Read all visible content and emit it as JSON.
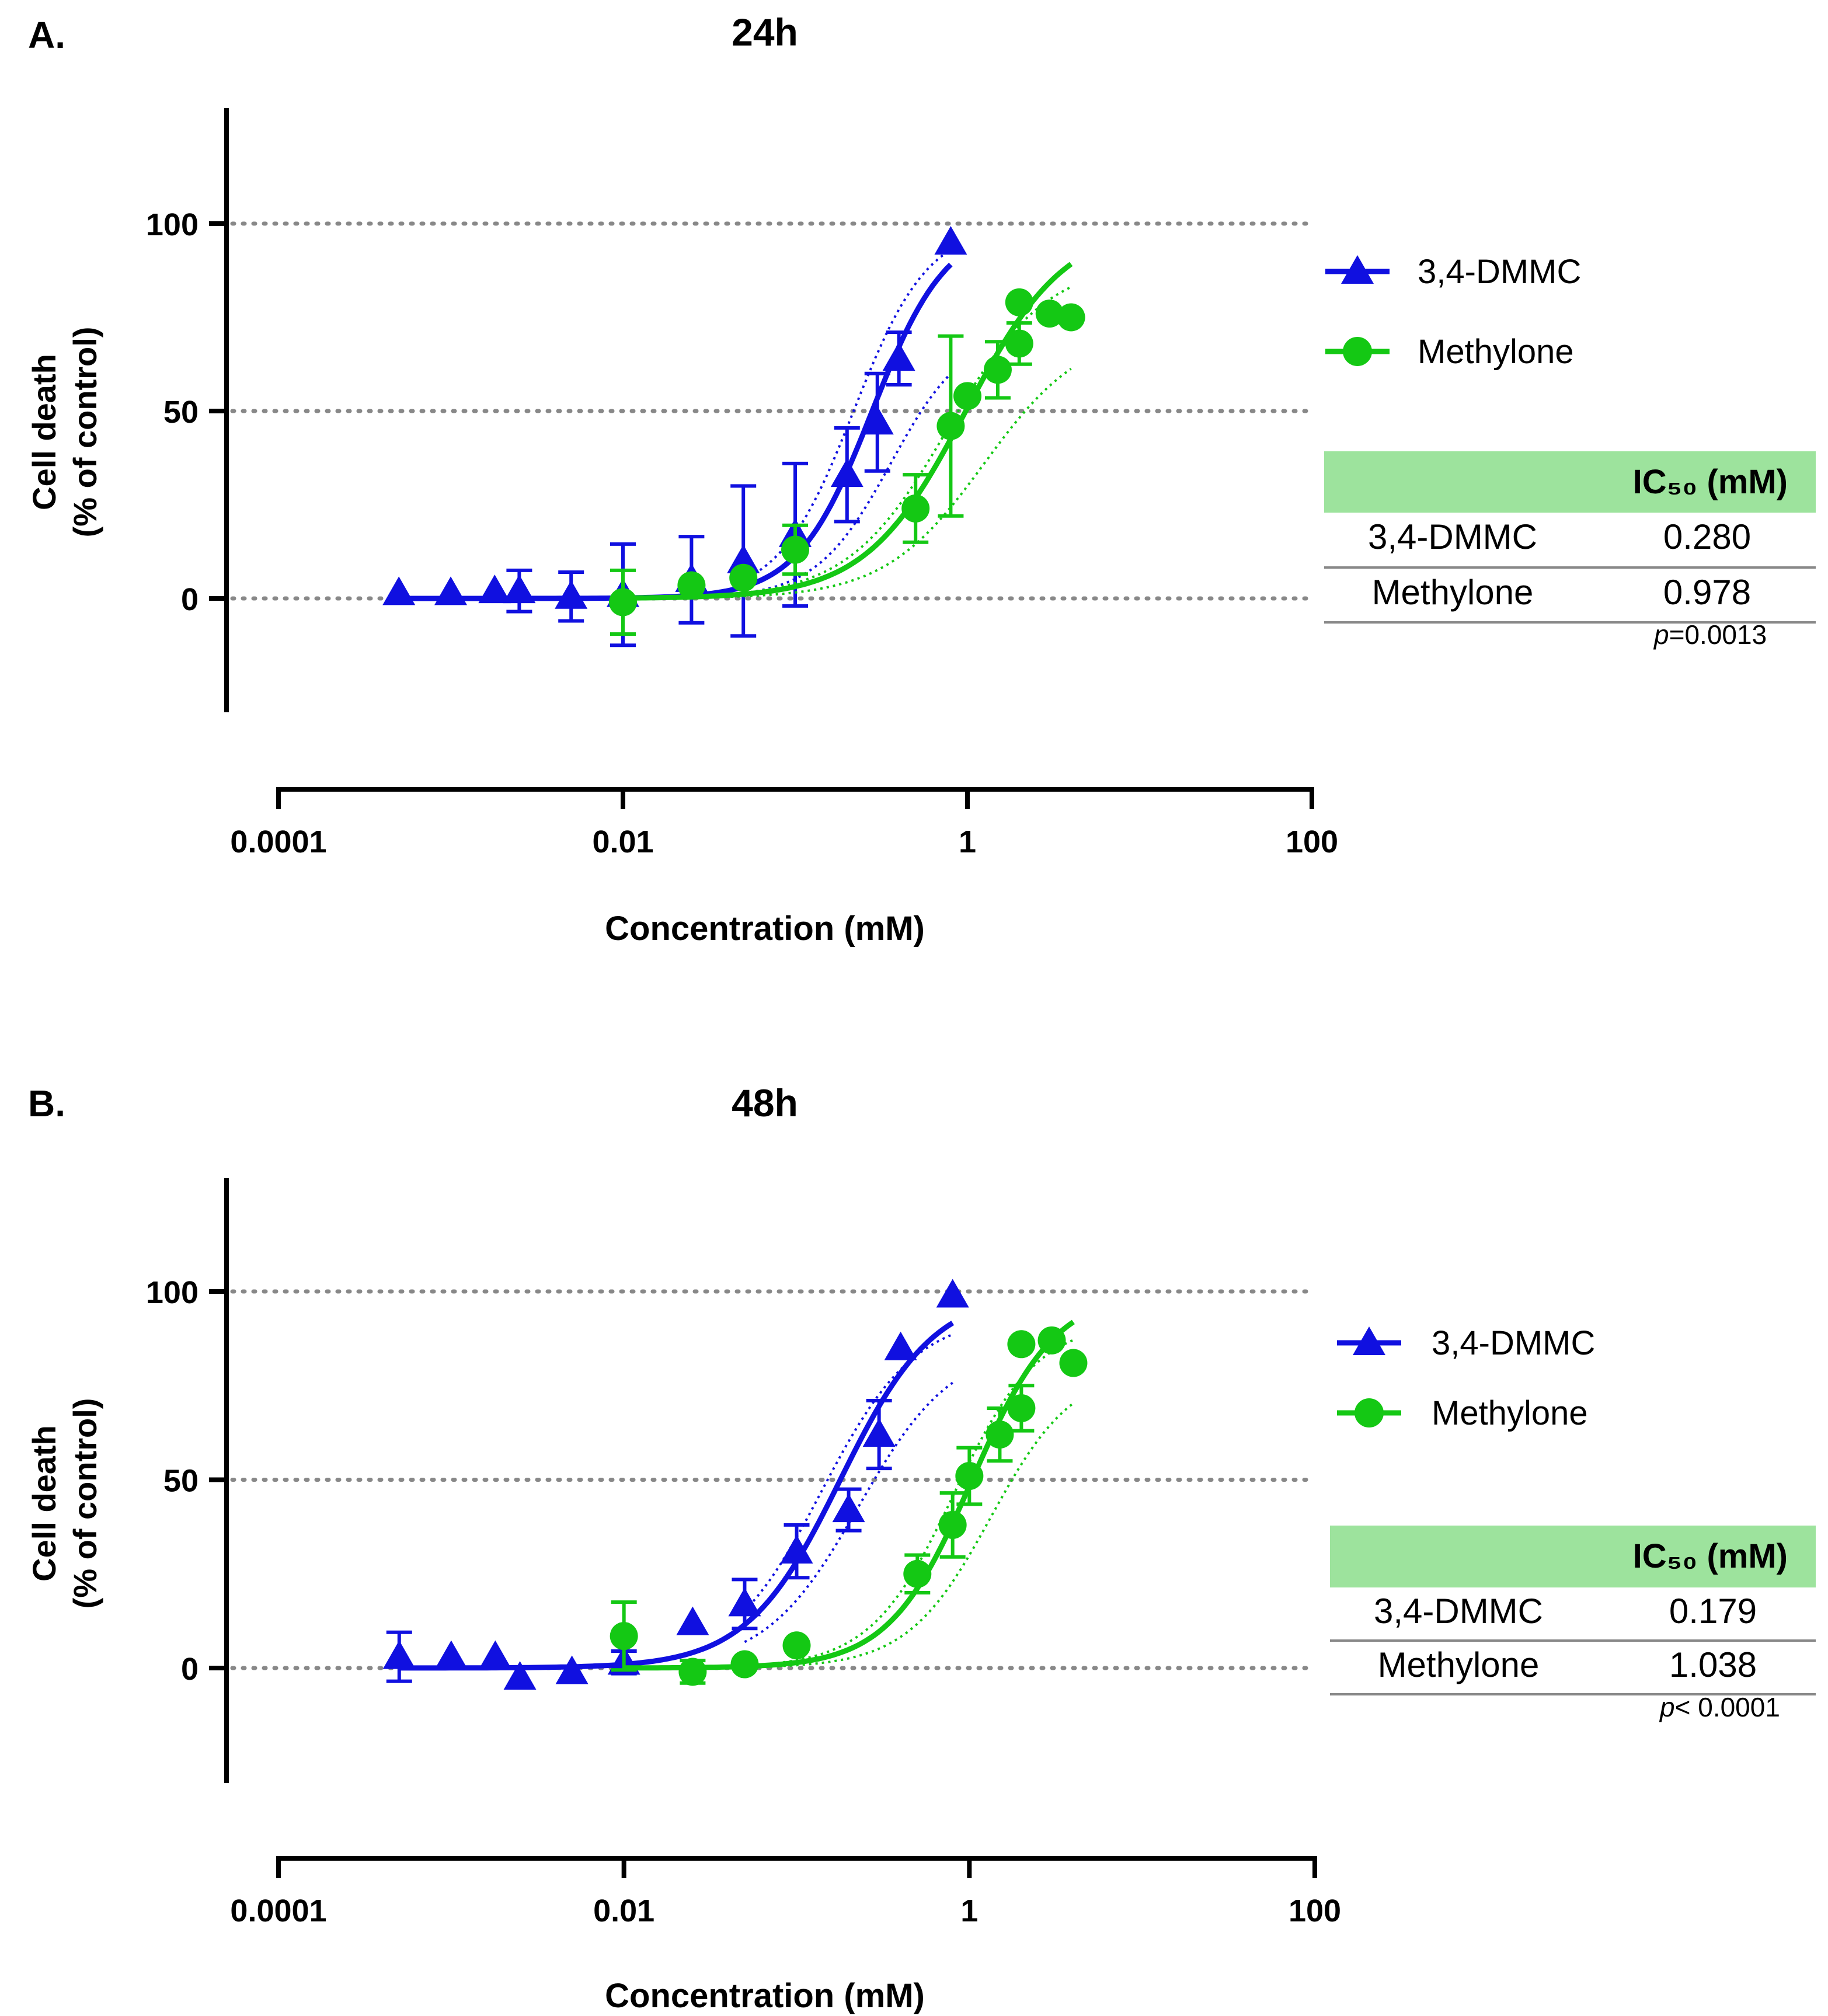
{
  "colors": {
    "blue": "#1010e0",
    "green": "#14c814",
    "grid": "#888888",
    "table_header": "#9de39d"
  },
  "chart_data": [
    {
      "panel_label": "A.",
      "title": "24h",
      "type": "scatter",
      "xscale": "log",
      "xlabel": "Concentration (mM)",
      "ylabel_line1": "Cell death",
      "ylabel_line2": "(% of control)",
      "xlim": [
        0.0001,
        100
      ],
      "ylim": [
        -30,
        130
      ],
      "xticks": [
        0.0001,
        0.01,
        1,
        100
      ],
      "xtick_labels": [
        "0.0001",
        "0.01",
        "1",
        "100"
      ],
      "yticks": [
        0,
        50,
        100
      ],
      "ytick_labels": [
        "0",
        "50",
        "100"
      ],
      "gridlines_y": [
        0,
        50,
        100
      ],
      "series": [
        {
          "name": "3,4-DMMC",
          "marker": "triangle",
          "color": "#1010e0",
          "x": [
            0.0005,
            0.001,
            0.0018,
            0.0025,
            0.005,
            0.01,
            0.025,
            0.05,
            0.1,
            0.2,
            0.3,
            0.4,
            0.8
          ],
          "y": [
            1.5,
            1.5,
            2,
            2,
            0.5,
            1,
            5,
            10,
            17,
            33,
            47,
            64,
            95
          ],
          "err": [
            0,
            0,
            0,
            5.5,
            6.5,
            13.5,
            11.5,
            20,
            19,
            12.5,
            13,
            7,
            0
          ],
          "ic50": 0.28,
          "hill": 2.0,
          "top": 100,
          "ci_low": 72,
          "ci_high": 100
        },
        {
          "name": "Methylone",
          "marker": "circle",
          "color": "#14c814",
          "x": [
            0.01,
            0.025,
            0.05,
            0.1,
            0.5,
            0.8,
            1.0,
            1.5,
            2.0,
            3.0,
            4.0,
            2.0
          ],
          "y": [
            -1,
            3.5,
            5.5,
            13,
            24,
            46,
            54,
            61,
            68,
            76,
            75,
            79
          ],
          "err": [
            8.5,
            0,
            0,
            6.5,
            9,
            24,
            0,
            7.5,
            5.5,
            0,
            0,
            0
          ],
          "ic50": 0.978,
          "hill": 1.5,
          "top": 100,
          "ci_low": 72,
          "ci_high": 90
        }
      ],
      "legend": [
        "3,4-DMMC",
        "Methylone"
      ],
      "table": {
        "header": "IC₅₀ (mM)",
        "rows": [
          {
            "name": "3,4-DMMC",
            "value": "0.280"
          },
          {
            "name": "Methylone",
            "value": "0.978"
          }
        ],
        "p_symbol": "p",
        "p_text": "=0.0013"
      }
    },
    {
      "panel_label": "B.",
      "title": "48h",
      "type": "scatter",
      "xscale": "log",
      "xlabel": "Concentration (mM)",
      "ylabel_line1": "Cell death",
      "ylabel_line2": "(% of control)",
      "xlim": [
        0.0001,
        100
      ],
      "ylim": [
        -30,
        130
      ],
      "xticks": [
        0.0001,
        0.01,
        1,
        100
      ],
      "xtick_labels": [
        "0.0001",
        "0.01",
        "1",
        "100"
      ],
      "yticks": [
        0,
        50,
        100
      ],
      "ytick_labels": [
        "0",
        "50",
        "100"
      ],
      "gridlines_y": [
        0,
        50,
        100
      ],
      "series": [
        {
          "name": "3,4-DMMC",
          "marker": "triangle",
          "color": "#1010e0",
          "x": [
            0.0005,
            0.001,
            0.0018,
            0.0025,
            0.005,
            0.01,
            0.025,
            0.05,
            0.1,
            0.2,
            0.3,
            0.4,
            0.8
          ],
          "y": [
            3,
            3,
            3,
            -2.5,
            -1,
            1.5,
            12,
            17,
            31,
            42,
            62,
            85,
            99
          ],
          "err": [
            6.5,
            0,
            0,
            0,
            0,
            3,
            0,
            6.5,
            7,
            5.5,
            9,
            0,
            0
          ],
          "ic50": 0.179,
          "hill": 1.6,
          "top": 100,
          "ci_low": 86,
          "ci_high": 94
        },
        {
          "name": "Methylone",
          "marker": "circle",
          "color": "#14c814",
          "x": [
            0.01,
            0.025,
            0.05,
            0.1,
            0.5,
            0.8,
            1.0,
            1.5,
            2.0,
            2.0,
            3.0,
            4.0
          ],
          "y": [
            8.5,
            -1,
            1,
            6,
            25,
            38,
            51,
            62,
            69,
            86,
            87,
            81
          ],
          "err": [
            9,
            3,
            0,
            0,
            5,
            8.5,
            7.5,
            7,
            6,
            0,
            0,
            0
          ],
          "ic50": 1.038,
          "hill": 1.8,
          "top": 100,
          "ci_low": 80,
          "ci_high": 92
        }
      ],
      "legend": [
        "3,4-DMMC",
        "Methylone"
      ],
      "table": {
        "header": "IC₅₀ (mM)",
        "rows": [
          {
            "name": "3,4-DMMC",
            "value": "0.179"
          },
          {
            "name": "Methylone",
            "value": "1.038"
          }
        ],
        "p_symbol": "p",
        "p_text": "< 0.0001"
      }
    }
  ]
}
